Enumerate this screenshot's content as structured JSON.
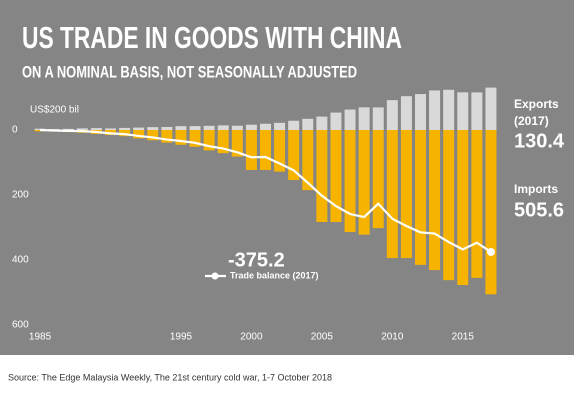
{
  "chart_data": {
    "type": "bar",
    "title": "US TRADE IN GOODS WITH CHINA",
    "subtitle": "ON A NOMINAL BASIS, NOT SEASONALLY ADJUSTED",
    "unit_label": "US$200 bil",
    "x": [
      1985,
      1986,
      1987,
      1988,
      1989,
      1990,
      1991,
      1992,
      1993,
      1994,
      1995,
      1996,
      1997,
      1998,
      1999,
      2000,
      2001,
      2002,
      2003,
      2004,
      2005,
      2006,
      2007,
      2008,
      2009,
      2010,
      2011,
      2012,
      2013,
      2014,
      2015,
      2016,
      2017
    ],
    "xlim": [
      1984.5,
      2017.5
    ],
    "xticks": [
      1985,
      1995,
      2000,
      2005,
      2010,
      2015
    ],
    "ylim": [
      -600,
      100
    ],
    "yticks": [
      0,
      {
        "value": -200,
        "label": "200"
      },
      {
        "value": -400,
        "label": "400"
      },
      {
        "value": -600,
        "label": "600"
      }
    ],
    "series": [
      {
        "name": "Exports",
        "type": "bar",
        "color": "#d9d9d9",
        "values": [
          3.9,
          3.1,
          3.5,
          5.0,
          5.8,
          4.8,
          6.3,
          7.4,
          8.8,
          9.3,
          11.8,
          12.0,
          12.9,
          14.2,
          13.1,
          16.2,
          19.2,
          22.1,
          28.4,
          34.4,
          41.2,
          53.7,
          62.9,
          69.7,
          69.5,
          91.9,
          104.1,
          110.5,
          121.7,
          123.7,
          115.9,
          115.6,
          130.4
        ]
      },
      {
        "name": "Imports",
        "type": "bar",
        "color": "#f6b400",
        "values": [
          -3.9,
          -4.8,
          -6.3,
          -8.5,
          -12.0,
          -15.2,
          -19.0,
          -25.7,
          -31.5,
          -38.8,
          -45.5,
          -51.5,
          -62.6,
          -71.2,
          -81.8,
          -123,
          -123,
          -128,
          -154,
          -185,
          -283,
          -283,
          -314,
          -322,
          -302,
          -394,
          -394,
          -415,
          -431,
          -462,
          -477,
          -455,
          -505.6
        ]
      },
      {
        "name": "Trade balance (2017)",
        "type": "line",
        "color": "#ffffff",
        "values": [
          0,
          -1.7,
          -2.8,
          -3.5,
          -6.2,
          -10.4,
          -12.7,
          -18.3,
          -22.8,
          -29.5,
          -33.8,
          -39.5,
          -49.7,
          -57.0,
          -68.7,
          -83.8,
          -83.1,
          -103.1,
          -124.1,
          -162.3,
          -202.3,
          -234.1,
          -258.5,
          -268.0,
          -226.9,
          -273.0,
          -295.3,
          -315.1,
          -318.7,
          -344.8,
          -367.3,
          -346.8,
          -375.2
        ]
      }
    ],
    "annotations": {
      "exports_label": "Exports",
      "exports_year": "(2017)",
      "exports_value": "130.4",
      "imports_label": "Imports",
      "imports_value": "505.6",
      "balance_value": "-375.2"
    },
    "source": "Source: The Edge Malaysia Weekly, The 21st century cold war, 1-7 October 2018"
  }
}
